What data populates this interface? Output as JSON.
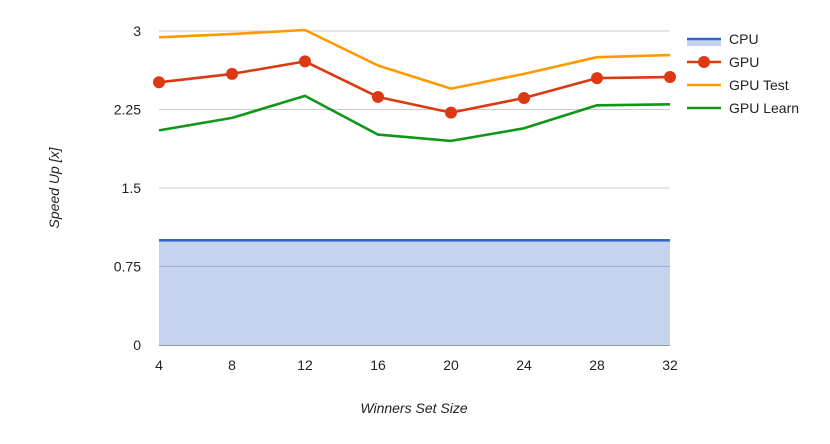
{
  "chart_data": {
    "type": "line",
    "title": "",
    "xlabel": "Winners Set Size",
    "ylabel": "Speed Up [x]",
    "x": [
      4,
      8,
      12,
      16,
      20,
      24,
      28,
      32
    ],
    "x_tick_labels": [
      "4",
      "8",
      "12",
      "16",
      "20",
      "24",
      "28",
      "32"
    ],
    "ylim": [
      0,
      3
    ],
    "y_ticks": [
      0,
      0.75,
      1.5,
      2.25,
      3
    ],
    "y_tick_labels": [
      "0",
      "0.75",
      "1.5",
      "2.25",
      "3"
    ],
    "grid": true,
    "legend_position": "right",
    "series": [
      {
        "name": "CPU",
        "style": "area",
        "color": "#3366cc",
        "fill": "#c5d3ef",
        "values": [
          1,
          1,
          1,
          1,
          1,
          1,
          1,
          1
        ]
      },
      {
        "name": "GPU",
        "style": "line-markers",
        "color": "#dc3912",
        "values": [
          2.51,
          2.59,
          2.71,
          2.37,
          2.22,
          2.36,
          2.55,
          2.56
        ]
      },
      {
        "name": "GPU Test",
        "style": "line",
        "color": "#ff9900",
        "values": [
          2.94,
          2.97,
          3.01,
          2.67,
          2.45,
          2.59,
          2.75,
          2.77
        ]
      },
      {
        "name": "GPU Learn",
        "style": "line",
        "color": "#109618",
        "values": [
          2.05,
          2.17,
          2.38,
          2.01,
          1.95,
          2.07,
          2.29,
          2.3
        ]
      }
    ]
  }
}
